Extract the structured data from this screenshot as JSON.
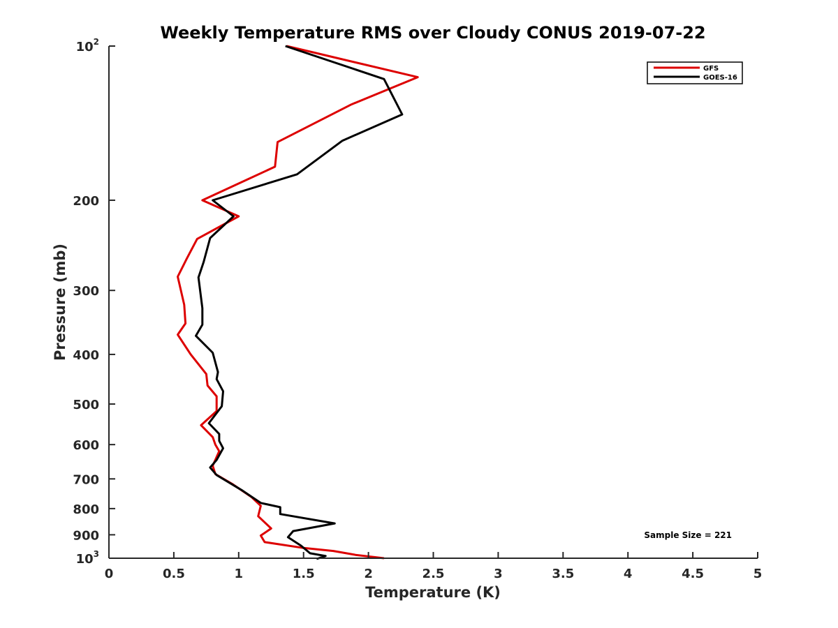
{
  "chart_data": {
    "type": "line",
    "title": "Weekly Temperature RMS over Cloudy CONUS 2019-07-22",
    "xlabel": "Temperature (K)",
    "ylabel": "Pressure (mb)",
    "xlim": [
      0,
      5
    ],
    "ylim": [
      100,
      1000
    ],
    "y_scale": "log",
    "y_reversed": true,
    "grid": false,
    "legend_position": "top-right",
    "x_ticks": [
      "0",
      "0.5",
      "1",
      "1.5",
      "2",
      "2.5",
      "3",
      "3.5",
      "4",
      "4.5",
      "5"
    ],
    "x_tick_values": [
      0,
      0.5,
      1,
      1.5,
      2,
      2.5,
      3,
      3.5,
      4,
      4.5,
      5
    ],
    "y_ticks": [
      {
        "value": 100,
        "base": "10",
        "exp": "2"
      },
      {
        "value": 200,
        "base": "200",
        "exp": ""
      },
      {
        "value": 300,
        "base": "300",
        "exp": ""
      },
      {
        "value": 400,
        "base": "400",
        "exp": ""
      },
      {
        "value": 500,
        "base": "500",
        "exp": ""
      },
      {
        "value": 600,
        "base": "600",
        "exp": ""
      },
      {
        "value": 700,
        "base": "700",
        "exp": ""
      },
      {
        "value": 800,
        "base": "800",
        "exp": ""
      },
      {
        "value": 900,
        "base": "900",
        "exp": ""
      },
      {
        "value": 1000,
        "base": "10",
        "exp": "3"
      }
    ],
    "annotation": "Sample Size = 221",
    "series": [
      {
        "name": "GFS",
        "color": "#dd0000",
        "points": [
          [
            1.37,
            100
          ],
          [
            2.38,
            115
          ],
          [
            1.87,
            130
          ],
          [
            1.3,
            154
          ],
          [
            1.28,
            172
          ],
          [
            0.72,
            200
          ],
          [
            1.0,
            215
          ],
          [
            0.68,
            238
          ],
          [
            0.6,
            260
          ],
          [
            0.53,
            282
          ],
          [
            0.58,
            320
          ],
          [
            0.59,
            348
          ],
          [
            0.53,
            366
          ],
          [
            0.63,
            400
          ],
          [
            0.75,
            437
          ],
          [
            0.76,
            460
          ],
          [
            0.83,
            483
          ],
          [
            0.83,
            516
          ],
          [
            0.71,
            550
          ],
          [
            0.8,
            580
          ],
          [
            0.82,
            600
          ],
          [
            0.85,
            618
          ],
          [
            0.8,
            660
          ],
          [
            0.82,
            685
          ],
          [
            0.95,
            716
          ],
          [
            1.1,
            760
          ],
          [
            1.17,
            790
          ],
          [
            1.15,
            828
          ],
          [
            1.25,
            875
          ],
          [
            1.17,
            903
          ],
          [
            1.2,
            930
          ],
          [
            1.5,
            955
          ],
          [
            1.73,
            968
          ],
          [
            1.9,
            985
          ],
          [
            2.12,
            1000
          ]
        ]
      },
      {
        "name": "GOES-16",
        "color": "#000000",
        "points": [
          [
            1.36,
            100
          ],
          [
            2.12,
            116
          ],
          [
            2.26,
            136
          ],
          [
            1.8,
            153
          ],
          [
            1.45,
            178
          ],
          [
            0.8,
            200
          ],
          [
            0.96,
            215
          ],
          [
            0.78,
            237
          ],
          [
            0.73,
            264
          ],
          [
            0.69,
            283
          ],
          [
            0.72,
            325
          ],
          [
            0.72,
            350
          ],
          [
            0.67,
            368
          ],
          [
            0.8,
            397
          ],
          [
            0.84,
            433
          ],
          [
            0.83,
            447
          ],
          [
            0.88,
            472
          ],
          [
            0.87,
            505
          ],
          [
            0.77,
            545
          ],
          [
            0.85,
            572
          ],
          [
            0.85,
            590
          ],
          [
            0.88,
            610
          ],
          [
            0.83,
            643
          ],
          [
            0.78,
            665
          ],
          [
            0.83,
            688
          ],
          [
            1.03,
            738
          ],
          [
            1.17,
            780
          ],
          [
            1.32,
            795
          ],
          [
            1.32,
            820
          ],
          [
            1.74,
            855
          ],
          [
            1.42,
            885
          ],
          [
            1.38,
            910
          ],
          [
            1.48,
            945
          ],
          [
            1.55,
            978
          ],
          [
            1.67,
            990
          ],
          [
            1.6,
            1003
          ]
        ]
      }
    ]
  }
}
